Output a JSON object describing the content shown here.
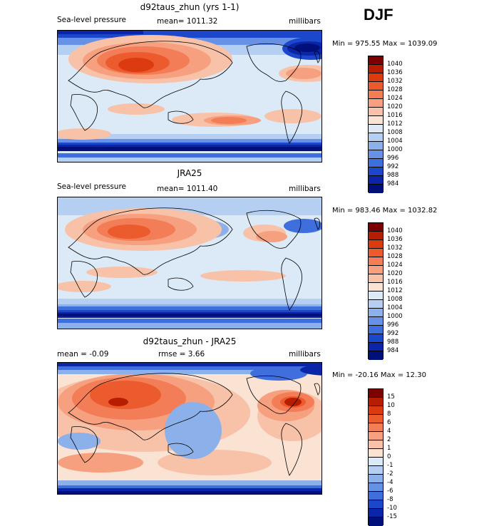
{
  "season": "DJF",
  "panels": [
    {
      "id": "model",
      "title": "d92taus_zhun (yrs 1-1)",
      "left_label": "Sea-level pressure",
      "center_label": "mean= 1011.32",
      "right_label": "millibars",
      "minmax": "Min = 975.55 Max = 1039.09",
      "stats": {
        "mean": 1011.32,
        "min": 975.55,
        "max": 1039.09
      },
      "palette": "slp",
      "pattern": "model"
    },
    {
      "id": "obs",
      "title": "JRA25",
      "left_label": "Sea-level pressure",
      "center_label": "mean= 1011.40",
      "right_label": "millibars",
      "minmax": "Min = 983.46 Max = 1032.82",
      "stats": {
        "mean": 1011.4,
        "min": 983.46,
        "max": 1032.82
      },
      "palette": "slp",
      "pattern": "obs"
    },
    {
      "id": "diff",
      "title": "d92taus_zhun - JRA25",
      "left_label": "mean =   -0.09",
      "center_label": "rmse =    3.66",
      "right_label": "millibars",
      "minmax": "Min = -20.16 Max =  12.30",
      "stats": {
        "mean": -0.09,
        "rmse": 3.66,
        "min": -20.16,
        "max": 12.3
      },
      "palette": "diff",
      "pattern": "diff"
    }
  ],
  "colorbars": {
    "slp": {
      "labels": [
        "1040",
        "1036",
        "1032",
        "1028",
        "1024",
        "1020",
        "1016",
        "1012",
        "1008",
        "1004",
        "1000",
        "996",
        "992",
        "988",
        "984"
      ],
      "colors": [
        "#7d0000",
        "#b81d00",
        "#dc3b10",
        "#ec5b2e",
        "#f37d56",
        "#f6a07f",
        "#f8c2a9",
        "#fbe3d4",
        "#dce9f7",
        "#b4cff1",
        "#8cb1ea",
        "#6691e4",
        "#3f6fdc",
        "#1c47cb",
        "#0a25a8",
        "#000f7a"
      ]
    },
    "diff": {
      "labels": [
        "15",
        "10",
        "8",
        "6",
        "4",
        "2",
        "1",
        "0",
        "-1",
        "-2",
        "-4",
        "-6",
        "-8",
        "-10",
        "-15"
      ],
      "colors": [
        "#7d0000",
        "#b81d00",
        "#dc3b10",
        "#ec5b2e",
        "#f37d56",
        "#f6a07f",
        "#f8c2a9",
        "#fbe3d4",
        "#dce9f7",
        "#b4cff1",
        "#8cb1ea",
        "#6691e4",
        "#3f6fdc",
        "#1c47cb",
        "#0a25a8",
        "#000f7a"
      ]
    }
  },
  "chart_data": [
    {
      "type": "heatmap",
      "title": "d92taus_zhun (yrs 1-1)",
      "field": "Sea-level pressure",
      "units": "millibars",
      "mean": 1011.32,
      "min": 975.55,
      "max": 1039.09,
      "levels": [
        984,
        988,
        992,
        996,
        1000,
        1004,
        1008,
        1012,
        1016,
        1020,
        1024,
        1028,
        1032,
        1036,
        1040
      ]
    },
    {
      "type": "heatmap",
      "title": "JRA25",
      "field": "Sea-level pressure",
      "units": "millibars",
      "mean": 1011.4,
      "min": 983.46,
      "max": 1032.82,
      "levels": [
        984,
        988,
        992,
        996,
        1000,
        1004,
        1008,
        1012,
        1016,
        1020,
        1024,
        1028,
        1032,
        1036,
        1040
      ]
    },
    {
      "type": "heatmap",
      "title": "d92taus_zhun - JRA25",
      "units": "millibars",
      "mean": -0.09,
      "rmse": 3.66,
      "min": -20.16,
      "max": 12.3,
      "levels": [
        -15,
        -10,
        -8,
        -6,
        -4,
        -2,
        -1,
        0,
        1,
        2,
        4,
        6,
        8,
        10,
        15
      ]
    }
  ]
}
